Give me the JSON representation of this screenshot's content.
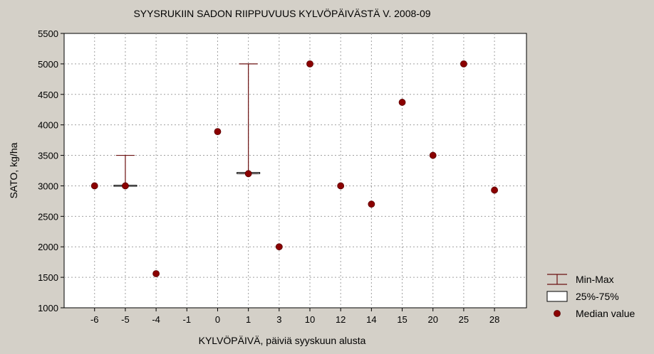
{
  "chart_data": {
    "type": "box",
    "title": "SYYSRUKIIN SADON RIIPPUVUUS KYLVÖPÄIVÄSTÄ V. 2008-09",
    "xlabel": "KYLVÖPÄIVÄ, päiviä syyskuun alusta",
    "ylabel": "SATO, kg/ha",
    "categories": [
      "-6",
      "-5",
      "-4",
      "-1",
      "0",
      "1",
      "3",
      "10",
      "12",
      "14",
      "15",
      "20",
      "25",
      "28"
    ],
    "ylim": [
      1000,
      5500
    ],
    "yticks": [
      1000,
      1500,
      2000,
      2500,
      3000,
      3500,
      4000,
      4500,
      5000,
      5500
    ],
    "grid": true,
    "legend_position": "right",
    "series": [
      {
        "name": "Median value",
        "values": [
          3000,
          3000,
          1560,
          null,
          3890,
          3200,
          2000,
          5000,
          3000,
          2700,
          4370,
          3500,
          5000,
          2930
        ]
      },
      {
        "name": "Min-Max",
        "ranges": [
          null,
          [
            3000,
            3500
          ],
          null,
          null,
          null,
          [
            3200,
            5000
          ],
          null,
          null,
          null,
          null,
          null,
          null,
          null,
          null
        ]
      },
      {
        "name": "25%-75%",
        "ranges": [
          null,
          [
            3000,
            3010
          ],
          null,
          null,
          null,
          [
            3200,
            3220
          ],
          null,
          null,
          null,
          null,
          null,
          null,
          null,
          null
        ]
      }
    ],
    "colors": {
      "marker": "#8b0000",
      "whisker": "#6b1010",
      "grid": "#a0a0a0",
      "plot_bg": "#ffffff",
      "page_bg": "#d4d0c8"
    }
  },
  "legend": {
    "items": [
      {
        "label": "Min-Max",
        "icon": "whisker-icon"
      },
      {
        "label": "25%-75%",
        "icon": "box-icon"
      },
      {
        "label": "Median value",
        "icon": "dot-icon"
      }
    ]
  }
}
